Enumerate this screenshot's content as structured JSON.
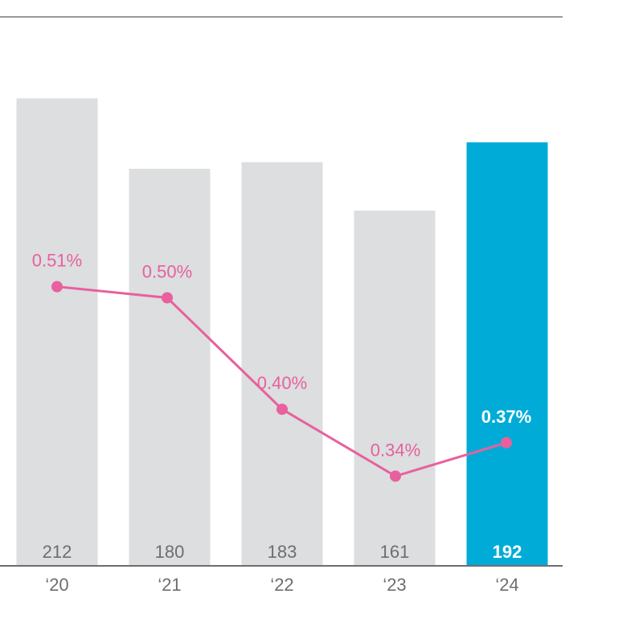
{
  "chart_data": {
    "type": "bar",
    "categories": [
      "‘20",
      "‘21",
      "‘22",
      "‘23",
      "‘24"
    ],
    "series": [
      {
        "values": [
          212,
          180,
          183,
          161,
          192
        ]
      },
      {
        "type": "line",
        "values": [
          0.51,
          0.5,
          0.4,
          0.34,
          0.37
        ],
        "labels": [
          "0.51%",
          "0.50%",
          "0.40%",
          "0.34%",
          "0.37%"
        ]
      }
    ],
    "bar_labels": [
      "212",
      "180",
      "183",
      "161",
      "192"
    ],
    "highlight_index": 4,
    "ylim_bars": [
      0,
      250
    ],
    "ylim_line": [
      0.0,
      1.0
    ],
    "grid": false,
    "legend": "none",
    "colors": {
      "bar": "#dcdee0",
      "bar_highlight": "#00acd7",
      "line": "#e8609e",
      "axis": "#6d6e71",
      "top_rule": "#333333",
      "bar_text": "#6d6e71",
      "highlight_text": "#ffffff"
    }
  }
}
